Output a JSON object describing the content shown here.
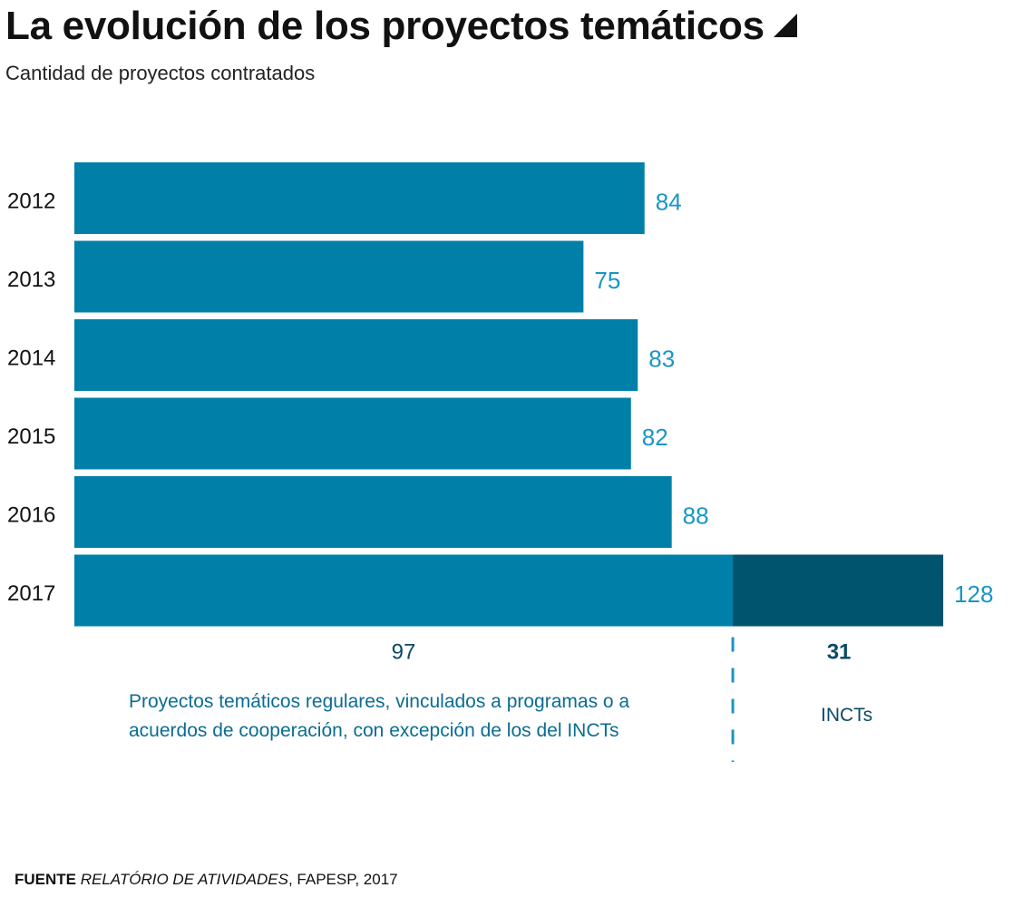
{
  "title": "La evolución de los proyectos temáticos",
  "subtitle": "Cantidad de proyectos contratados",
  "colors": {
    "regular": "#0080a8",
    "incts": "#00546e",
    "value_label": "#1a95c4",
    "incts_label": "#0a4a66"
  },
  "chart_data": {
    "type": "bar",
    "orientation": "horizontal",
    "stacked": true,
    "title": "La evolución de los proyectos temáticos",
    "subtitle": "Cantidad de proyectos contratados",
    "categories": [
      "2012",
      "2013",
      "2014",
      "2015",
      "2016",
      "2017"
    ],
    "series": [
      {
        "values": [
          84,
          75,
          83,
          82,
          88,
          97
        ]
      },
      {
        "values": [
          0,
          0,
          0,
          0,
          0,
          31
        ]
      }
    ],
    "totals": [
      "84",
      "75",
      "83",
      "82",
      "88",
      "128"
    ],
    "segment_labels": [
      "97",
      "31"
    ],
    "xlim": [
      0,
      128
    ],
    "grid": false
  },
  "notes": {
    "regular": "Proyectos temáticos regulares, vinculados a programas o a acuerdos de cooperación, con excepción de los del INCTs",
    "incts": "INCTs"
  },
  "source": {
    "label": "FUENTE",
    "title": "RELATÓRIO DE ATIVIDADES",
    "rest": ", FAPESP, 2017"
  }
}
